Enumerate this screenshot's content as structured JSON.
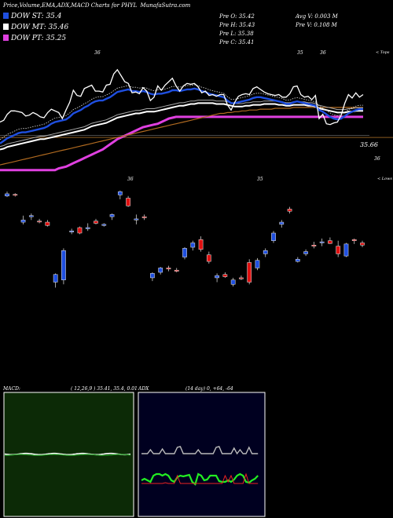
{
  "header": {
    "title": "Price,Volume,EMA,ADX,MACD Charts for PHYL",
    "site": "MunafaSutra.com"
  },
  "legend": [
    {
      "label": "DOW ST: 35.4",
      "color": "#1f4fe0"
    },
    {
      "label": "DOW MT: 35.46",
      "color": "#ffffff"
    },
    {
      "label": "DOW PT: 35.25",
      "color": "#e040e0"
    }
  ],
  "prev_stats": {
    "open": "Pre   O: 35.42",
    "high": "Pre   H: 35.43",
    "low": "Pre   L: 35.38",
    "close": "Pre   C: 35.41",
    "avg_volume": "Avg V: 0.003  M",
    "prev_volume": "Pre   V: 0.108  M"
  },
  "annotations": {
    "price_label": "35.66",
    "level_label": "36",
    "upper_marker": "< Tops",
    "lower_marker": "< Lows",
    "top_ticks": [
      "36",
      "35",
      "36"
    ],
    "low_ticks": [
      "36",
      "35"
    ]
  },
  "macd_panel": {
    "title": "MACD:",
    "values": "( 12,26,9 ) 35.41,  35.4,  0.01"
  },
  "adx_panel": {
    "title": "ADX",
    "values": "(14  day) 0,  +64,  -64"
  },
  "colors": {
    "up": "#1f4fe0",
    "down": "#e01010",
    "ema_short": "#1f4fe0",
    "ema_mid": "#ffffff",
    "ema_long": "#e040e0",
    "macd_bg": "#0c2a06",
    "adx_bg": "#000020",
    "adx_plus": "#22ee22",
    "adx_minus": "#ee2222"
  },
  "chart_data": {
    "type": "candlestick",
    "note": "Overlay lines use a relative index scale; candle values are relative price levels.",
    "candles": [
      {
        "o": 18,
        "h": 18.4,
        "l": 17.4,
        "c": 17.6,
        "color": "blue"
      },
      {
        "o": 17.8,
        "h": 18.1,
        "l": 17.5,
        "c": 17.9,
        "color": "red"
      },
      {
        "o": 13.2,
        "h": 14.0,
        "l": 12.4,
        "c": 12.8,
        "color": "blue"
      },
      {
        "o": 13.8,
        "h": 14.4,
        "l": 13.2,
        "c": 14.0,
        "color": "blue"
      },
      {
        "o": 13.0,
        "h": 13.4,
        "l": 12.6,
        "c": 12.9,
        "color": "red"
      },
      {
        "o": 12.8,
        "h": 13.2,
        "l": 12.0,
        "c": 12.2,
        "color": "red"
      },
      {
        "o": 1.8,
        "h": 3.4,
        "l": 0.8,
        "c": 3.2,
        "color": "blue"
      },
      {
        "o": 2.2,
        "h": 8.0,
        "l": 1.4,
        "c": 7.6,
        "color": "blue"
      },
      {
        "o": 11.2,
        "h": 11.6,
        "l": 10.6,
        "c": 11.0,
        "color": "blue"
      },
      {
        "o": 11.8,
        "h": 12.0,
        "l": 10.6,
        "c": 10.8,
        "color": "red"
      },
      {
        "o": 11.6,
        "h": 12.6,
        "l": 11.2,
        "c": 11.8,
        "color": "blue"
      },
      {
        "o": 13.0,
        "h": 13.4,
        "l": 12.4,
        "c": 12.6,
        "color": "red"
      },
      {
        "o": 12.4,
        "h": 12.6,
        "l": 12.0,
        "c": 12.2,
        "color": "blue"
      },
      {
        "o": 13.8,
        "h": 14.4,
        "l": 13.2,
        "c": 14.2,
        "color": "blue"
      },
      {
        "o": 17.8,
        "h": 18.6,
        "l": 17.0,
        "c": 18.4,
        "color": "blue"
      },
      {
        "o": 17.2,
        "h": 17.6,
        "l": 15.6,
        "c": 15.8,
        "color": "red"
      },
      {
        "o": 13.2,
        "h": 14.2,
        "l": 12.4,
        "c": 13.4,
        "color": "blue"
      },
      {
        "o": 13.8,
        "h": 14.2,
        "l": 13.2,
        "c": 13.6,
        "color": "red"
      },
      {
        "o": 2.6,
        "h": 3.6,
        "l": 2.0,
        "c": 3.4,
        "color": "blue"
      },
      {
        "o": 3.6,
        "h": 4.6,
        "l": 3.2,
        "c": 4.4,
        "color": "blue"
      },
      {
        "o": 4.4,
        "h": 4.8,
        "l": 3.8,
        "c": 4.2,
        "color": "red"
      },
      {
        "o": 4.0,
        "h": 4.4,
        "l": 3.6,
        "c": 3.8,
        "color": "red"
      },
      {
        "o": 6.4,
        "h": 8.2,
        "l": 6.0,
        "c": 8.0,
        "color": "blue"
      },
      {
        "o": 8.2,
        "h": 9.4,
        "l": 7.6,
        "c": 9.0,
        "color": "blue"
      },
      {
        "o": 9.6,
        "h": 10.2,
        "l": 7.4,
        "c": 7.8,
        "color": "red"
      },
      {
        "o": 6.8,
        "h": 7.4,
        "l": 5.2,
        "c": 5.6,
        "color": "red"
      },
      {
        "o": 2.6,
        "h": 3.4,
        "l": 1.8,
        "c": 3.0,
        "color": "blue"
      },
      {
        "o": 3.2,
        "h": 3.6,
        "l": 2.6,
        "c": 2.8,
        "color": "red"
      },
      {
        "o": 1.4,
        "h": 2.6,
        "l": 1.0,
        "c": 2.2,
        "color": "blue"
      },
      {
        "o": 2.6,
        "h": 3.0,
        "l": 2.2,
        "c": 2.4,
        "color": "red"
      },
      {
        "o": 1.8,
        "h": 6.0,
        "l": 1.4,
        "c": 5.4,
        "color": "red"
      },
      {
        "o": 4.4,
        "h": 6.2,
        "l": 4.0,
        "c": 5.8,
        "color": "blue"
      },
      {
        "o": 7.0,
        "h": 8.0,
        "l": 6.4,
        "c": 7.6,
        "color": "blue"
      },
      {
        "o": 9.4,
        "h": 11.2,
        "l": 9.0,
        "c": 10.8,
        "color": "blue"
      },
      {
        "o": 12.4,
        "h": 13.2,
        "l": 11.8,
        "c": 12.8,
        "color": "blue"
      },
      {
        "o": 14.8,
        "h": 15.6,
        "l": 14.4,
        "c": 15.2,
        "color": "red"
      },
      {
        "o": 6.0,
        "h": 6.4,
        "l": 5.4,
        "c": 5.6,
        "color": "blue"
      },
      {
        "o": 7.0,
        "h": 7.8,
        "l": 6.6,
        "c": 7.4,
        "color": "blue"
      },
      {
        "o": 8.6,
        "h": 9.2,
        "l": 8.0,
        "c": 8.4,
        "color": "red"
      },
      {
        "o": 9.0,
        "h": 9.8,
        "l": 8.4,
        "c": 9.2,
        "color": "blue"
      },
      {
        "o": 9.4,
        "h": 10.0,
        "l": 8.8,
        "c": 8.9,
        "color": "red"
      },
      {
        "o": 8.4,
        "h": 9.4,
        "l": 6.4,
        "c": 7.0,
        "color": "red"
      },
      {
        "o": 6.6,
        "h": 9.0,
        "l": 6.4,
        "c": 8.8,
        "color": "blue"
      },
      {
        "o": 9.4,
        "h": 9.8,
        "l": 8.8,
        "c": 9.6,
        "color": "red"
      },
      {
        "o": 8.6,
        "h": 9.4,
        "l": 8.2,
        "c": 9.0,
        "color": "red"
      }
    ],
    "price_line": [
      20,
      20.4,
      21.8,
      22.6,
      22.6,
      22.4,
      22.2,
      21.4,
      21.6,
      22.2,
      21.8,
      21.2,
      21.0,
      22.2,
      23.0,
      22.6,
      22.2,
      20.8,
      22.8,
      24.6,
      27.4,
      26.2,
      26.0,
      27.8,
      28.2,
      28.6,
      27.2,
      27.2,
      27.0,
      28.6,
      28.8,
      31.2,
      32.2,
      30.8,
      29.4,
      29.0,
      26.8,
      27.0,
      26.6,
      28.0,
      27.2,
      25.0,
      25.8,
      28.4,
      27.4,
      28.6,
      29.4,
      30.2,
      28.4,
      27.2,
      28.4,
      29.0,
      28.8,
      29.0,
      28.2,
      26.8,
      27.2,
      26.2,
      26.4,
      26.0,
      26.4,
      26.4,
      24.0,
      22.8,
      24.6,
      26.0,
      26.4,
      26.6,
      26.4,
      27.8,
      28.2,
      27.6,
      27.0,
      26.6,
      26.4,
      26.2,
      26.4,
      25.8,
      25.8,
      26.6,
      28.2,
      28.4,
      26.4,
      25.8,
      26.0,
      25.2,
      26.2,
      20.8,
      21.8,
      19.6,
      19.4,
      19.8,
      20.0,
      21.6,
      24.4,
      26.4,
      25.6,
      26.8,
      25.8,
      26.4
    ],
    "ema_short": [
      15.0,
      15.6,
      16.2,
      16.6,
      17.0,
      17.4,
      17.6,
      17.6,
      17.8,
      18.0,
      18.2,
      18.4,
      18.6,
      19.0,
      19.6,
      20.0,
      20.2,
      20.4,
      20.6,
      21.2,
      22.0,
      22.4,
      22.8,
      23.4,
      23.8,
      24.4,
      24.8,
      25.0,
      25.0,
      25.4,
      25.8,
      26.4,
      27.0,
      27.2,
      27.4,
      27.6,
      27.2,
      27.2,
      27.0,
      27.2,
      27.0,
      26.6,
      26.4,
      26.6,
      26.6,
      26.8,
      27.0,
      27.4,
      27.4,
      27.2,
      27.4,
      27.6,
      27.6,
      27.8,
      27.6,
      27.2,
      27.0,
      26.6,
      26.4,
      26.2,
      26.0,
      25.8,
      25.0,
      24.4,
      24.4,
      24.6,
      24.8,
      25.0,
      25.2,
      25.6,
      25.8,
      25.8,
      25.6,
      25.4,
      25.2,
      25.0,
      24.8,
      24.6,
      24.2,
      24.2,
      24.6,
      24.8,
      24.6,
      24.4,
      24.2,
      24.0,
      23.8,
      22.8,
      22.4,
      21.8,
      21.2,
      20.8,
      20.6,
      20.8,
      21.4,
      22.0,
      22.4,
      22.8,
      23.0,
      23.0
    ],
    "ema_mid": [
      13.6,
      13.8,
      14.2,
      14.4,
      14.6,
      14.8,
      15.0,
      15.2,
      15.4,
      15.6,
      15.8,
      16.0,
      16.0,
      16.2,
      16.4,
      16.6,
      16.8,
      17.0,
      17.2,
      17.4,
      17.6,
      17.8,
      18.0,
      18.2,
      18.6,
      19.0,
      19.2,
      19.4,
      19.6,
      19.8,
      20.2,
      20.6,
      21.0,
      21.2,
      21.4,
      21.6,
      21.8,
      22.0,
      22.0,
      22.2,
      22.4,
      22.4,
      22.4,
      22.6,
      22.8,
      23.0,
      23.2,
      23.4,
      23.6,
      23.8,
      23.8,
      24.0,
      24.2,
      24.2,
      24.4,
      24.4,
      24.4,
      24.4,
      24.4,
      24.2,
      24.2,
      24.2,
      24.0,
      23.8,
      23.6,
      23.6,
      23.6,
      23.8,
      23.8,
      24.0,
      24.0,
      24.0,
      24.2,
      24.2,
      24.2,
      24.2,
      24.0,
      24.0,
      23.8,
      23.8,
      24.0,
      24.0,
      24.0,
      24.0,
      23.8,
      23.8,
      23.6,
      23.2,
      23.0,
      22.8,
      22.6,
      22.4,
      22.2,
      22.2,
      22.2,
      22.4,
      22.4,
      22.6,
      22.6,
      22.6
    ],
    "ema_long": [
      10.0,
      10.2,
      10.4,
      10.6,
      10.8,
      11.0,
      11.2,
      11.4,
      11.6,
      11.8,
      12.0,
      12.2,
      12.4,
      12.6,
      12.8,
      13.0,
      13.2,
      13.4,
      13.6,
      13.8,
      14.0,
      14.2,
      14.4,
      14.6,
      14.8,
      15.0,
      15.2,
      15.4,
      15.6,
      15.8,
      16.0,
      16.2,
      16.4,
      16.6,
      16.8,
      17.0,
      17.2,
      17.4,
      17.6,
      17.8,
      18.0,
      18.2,
      18.4,
      18.6,
      18.8,
      19.0,
      19.2,
      19.4,
      19.6,
      19.8,
      20.0,
      20.2,
      20.4,
      20.6,
      20.8,
      21.0,
      21.2,
      21.4,
      21.6,
      21.8,
      22.0,
      22.0,
      22.2,
      22.2,
      22.4,
      22.4,
      22.6,
      22.6,
      22.8,
      22.8,
      22.8,
      23.0,
      23.0,
      23.0,
      23.0,
      23.2,
      23.2,
      23.2,
      23.2,
      23.2,
      23.4,
      23.4,
      23.4,
      23.4,
      23.4,
      23.4,
      23.4,
      23.4,
      23.4,
      23.4,
      23.4,
      23.4,
      23.4,
      23.4,
      23.4,
      23.4,
      23.4,
      23.4,
      23.4,
      23.4
    ],
    "dow_pt": [
      8.8,
      8.8,
      8.8,
      8.8,
      8.8,
      8.8,
      8.8,
      8.8,
      8.8,
      8.8,
      8.8,
      8.8,
      8.8,
      8.8,
      8.8,
      8.8,
      9.2,
      9.4,
      9.6,
      10.0,
      10.4,
      10.8,
      11.2,
      11.6,
      12.0,
      12.4,
      12.8,
      13.2,
      13.6,
      14.2,
      14.8,
      15.4,
      16.0,
      16.4,
      16.8,
      17.2,
      17.6,
      18.0,
      18.4,
      18.8,
      19.0,
      19.2,
      19.4,
      19.6,
      20.0,
      20.4,
      20.8,
      21.0,
      21.2,
      21.2,
      21.2,
      21.2,
      21.2,
      21.2,
      21.2,
      21.2,
      21.2,
      21.2,
      21.2,
      21.2,
      21.2,
      21.2,
      21.2,
      21.2,
      21.2,
      21.2,
      21.2,
      21.2,
      21.2,
      21.2,
      21.2,
      21.2,
      21.2,
      21.2,
      21.2,
      21.2,
      21.2,
      21.2,
      21.2,
      21.2,
      21.2,
      21.2,
      21.2,
      21.2,
      21.2,
      21.2,
      21.2,
      21.2,
      21.2,
      21.2,
      21.2,
      21.2,
      21.2,
      21.2,
      21.2,
      21.2,
      21.2,
      21.2,
      21.2,
      21.2
    ]
  }
}
